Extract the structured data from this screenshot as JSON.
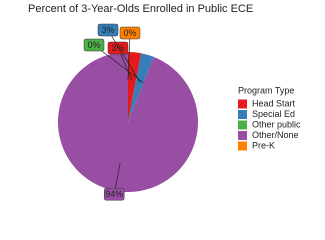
{
  "chart_data": {
    "type": "pie",
    "title": "Percent of 3-Year-Olds Enrolled in Public ECE",
    "legend_title": "Program Type",
    "legend": "right",
    "categories": [
      "Head Start",
      "Special Ed",
      "Other public",
      "Other/None",
      "Pre-K"
    ],
    "values": [
      3,
      3,
      0,
      94,
      0
    ],
    "value_labels": [
      "3%",
      "3%",
      "0%",
      "94%",
      "0%"
    ],
    "colors": [
      "#e41a1c",
      "#377eb8",
      "#4daf4a",
      "#984ea3",
      "#ff7f00"
    ]
  }
}
